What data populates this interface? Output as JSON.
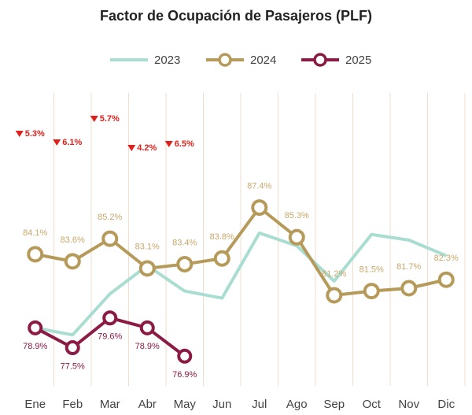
{
  "chart_data": {
    "type": "line",
    "title": "Factor de Ocupación de Pasajeros (PLF)",
    "categories": [
      "Ene",
      "Feb",
      "Mar",
      "Abr",
      "May",
      "Jun",
      "Jul",
      "Ago",
      "Sep",
      "Oct",
      "Nov",
      "Dic"
    ],
    "series": [
      {
        "name": "2023",
        "color": "#a9ddd1",
        "values": [
          78.9,
          78.4,
          81.3,
          83.3,
          81.5,
          81.0,
          85.6,
          84.7,
          82.2,
          85.5,
          85.1,
          84.0
        ]
      },
      {
        "name": "2024",
        "color": "#b59a5a",
        "values": [
          84.1,
          83.6,
          85.2,
          83.1,
          83.4,
          83.8,
          87.4,
          85.3,
          81.2,
          81.5,
          81.7,
          82.3
        ],
        "value_labels": [
          "84.1%",
          "83.6%",
          "85.2%",
          "83.1%",
          "83.4%",
          "83.8%",
          "87.4%",
          "85.3%",
          "81.2%",
          "81.5%",
          "81.7%",
          "82.3%"
        ]
      },
      {
        "name": "2025",
        "color": "#8b1a45",
        "values": [
          78.9,
          77.5,
          79.6,
          78.9,
          76.9,
          null,
          null,
          null,
          null,
          null,
          null,
          null
        ],
        "value_labels": [
          "78.9%",
          "77.5%",
          "79.6%",
          "78.9%",
          "76.9%",
          null,
          null,
          null,
          null,
          null,
          null,
          null
        ]
      }
    ],
    "annotations": [
      "5.3%",
      "6.1%",
      "5.7%",
      "4.2%",
      "6.5%"
    ],
    "ylim": [
      74.8,
      95.5
    ],
    "grid": true
  }
}
